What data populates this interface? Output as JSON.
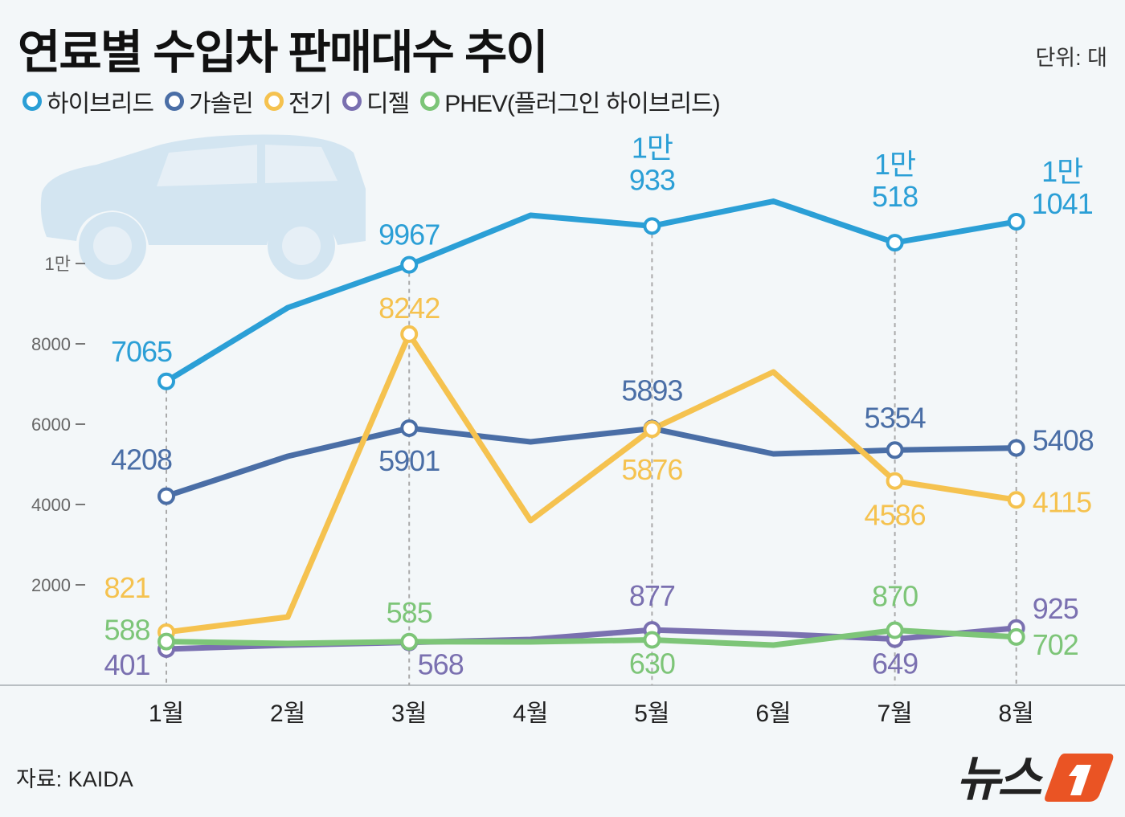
{
  "title": "연료별 수입차 판매대수 추이",
  "unit": "단위: 대",
  "source": "자료: KAIDA",
  "logo_text": "뉴스1",
  "chart_data": {
    "type": "line",
    "title": "연료별 수입차 판매대수 추이",
    "categories": [
      "1월",
      "2월",
      "3월",
      "4월",
      "5월",
      "6월",
      "7월",
      "8월"
    ],
    "yticks": [
      {
        "value": 2000,
        "label": "2000"
      },
      {
        "value": 4000,
        "label": "4000"
      },
      {
        "value": 6000,
        "label": "6000"
      },
      {
        "value": 8000,
        "label": "8000"
      },
      {
        "value": 10000,
        "label": "1만"
      }
    ],
    "ylim": [
      -500,
      12000
    ],
    "grid": false,
    "legend": "top-left",
    "series": [
      {
        "name": "하이브리드",
        "color": "#2b9fd6",
        "values": [
          7065,
          8900,
          9967,
          11200,
          10933,
          11550,
          10518,
          11041
        ],
        "labels": [
          "7065",
          null,
          "9967",
          null,
          "1만 933",
          null,
          "1만 518",
          "1만 1041"
        ]
      },
      {
        "name": "가솔린",
        "color": "#4a6ea6",
        "values": [
          4208,
          5200,
          5901,
          5560,
          5893,
          5260,
          5354,
          5408
        ],
        "labels": [
          "4208",
          null,
          "5901",
          null,
          "5893",
          null,
          "5354",
          "5408"
        ]
      },
      {
        "name": "전기",
        "color": "#f5c24f",
        "values": [
          821,
          1200,
          8242,
          3600,
          5876,
          7300,
          4586,
          4115
        ],
        "labels": [
          "821",
          null,
          "8242",
          null,
          "5876",
          null,
          "4586",
          "4115"
        ]
      },
      {
        "name": "디젤",
        "color": "#7a70b0",
        "values": [
          401,
          500,
          568,
          640,
          877,
          780,
          649,
          925
        ],
        "labels": [
          "401",
          null,
          "568",
          null,
          "877",
          null,
          "649",
          "925"
        ]
      },
      {
        "name": "PHEV(플러그인 하이브리드)",
        "color": "#7dc578",
        "values": [
          588,
          540,
          585,
          580,
          630,
          500,
          870,
          702
        ],
        "labels": [
          "588",
          null,
          "585",
          null,
          "630",
          null,
          "870",
          "702"
        ]
      }
    ]
  }
}
